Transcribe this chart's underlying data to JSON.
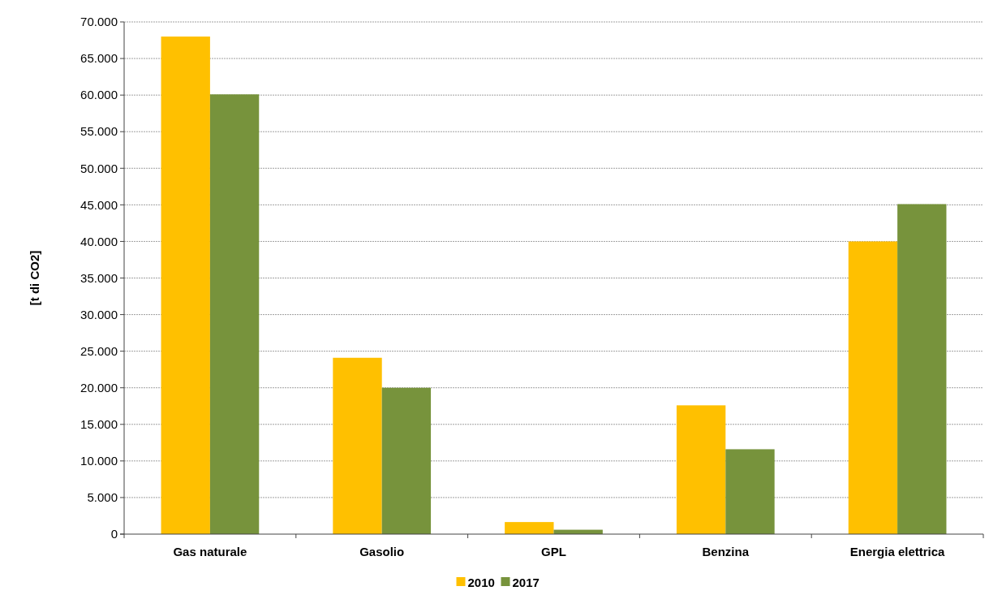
{
  "chart_data": {
    "type": "bar",
    "ylabel": "[t di CO2]",
    "categories": [
      "Gas naturale",
      "Gasolio",
      "GPL",
      "Benzina",
      "Energia elettrica"
    ],
    "series": [
      {
        "name": "2010",
        "color": "#ffc000",
        "values": [
          68000,
          24100,
          1650,
          17600,
          40000
        ]
      },
      {
        "name": "2017",
        "color": "#77933c",
        "values": [
          60100,
          20000,
          600,
          11600,
          45100
        ]
      }
    ],
    "ylim": [
      0,
      70000
    ],
    "yticks": [
      {
        "value": 0,
        "label": "0"
      },
      {
        "value": 5000,
        "label": "5.000"
      },
      {
        "value": 10000,
        "label": "10.000"
      },
      {
        "value": 15000,
        "label": "15.000"
      },
      {
        "value": 20000,
        "label": "20.000"
      },
      {
        "value": 25000,
        "label": "25.000"
      },
      {
        "value": 30000,
        "label": "30.000"
      },
      {
        "value": 35000,
        "label": "35.000"
      },
      {
        "value": 40000,
        "label": "40.000"
      },
      {
        "value": 45000,
        "label": "45.000"
      },
      {
        "value": 50000,
        "label": "50.000"
      },
      {
        "value": 55000,
        "label": "55.000"
      },
      {
        "value": 60000,
        "label": "60.000"
      },
      {
        "value": 65000,
        "label": "65.000"
      },
      {
        "value": 70000,
        "label": "70.000"
      }
    ],
    "grid": "y",
    "legend": "bottom"
  }
}
